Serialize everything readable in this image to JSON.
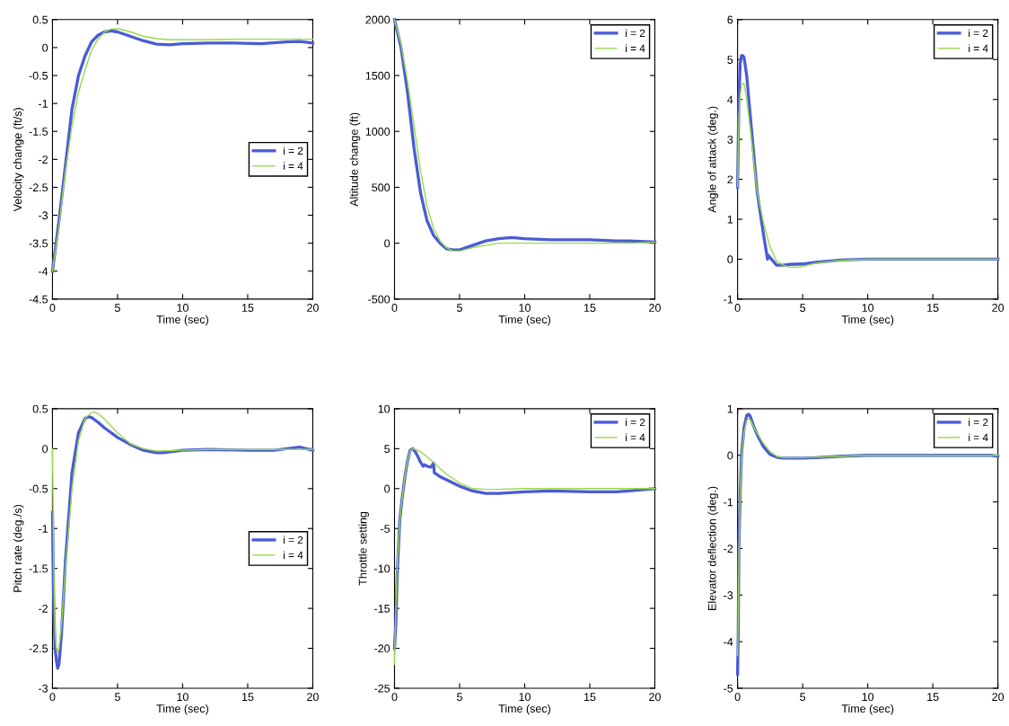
{
  "chart_data": [
    {
      "type": "line",
      "xlabel": "Time (sec)",
      "ylabel": "Velocity change (ft/s)",
      "xlim": [
        0,
        20
      ],
      "xticks": [
        0,
        5,
        10,
        15,
        20
      ],
      "ylim": [
        -4.5,
        0.5
      ],
      "yticks": [
        -4.5,
        -4,
        -3.5,
        -3,
        -2.5,
        -2,
        -1.5,
        -1,
        -0.5,
        0,
        0.5
      ],
      "legend": "right",
      "grid": false,
      "series": [
        {
          "name": "i = 2",
          "color": "#4a5bd6",
          "x": [
            0,
            0.5,
            1,
            1.5,
            2,
            2.5,
            3,
            3.5,
            4,
            4.5,
            5,
            6,
            7,
            8,
            9,
            10,
            12,
            14,
            16,
            18,
            19,
            20
          ],
          "values": [
            -4,
            -3.1,
            -2.1,
            -1.1,
            -0.5,
            -0.15,
            0.1,
            0.22,
            0.28,
            0.3,
            0.28,
            0.2,
            0.12,
            0.06,
            0.05,
            0.07,
            0.08,
            0.08,
            0.07,
            0.1,
            0.11,
            0.08
          ]
        },
        {
          "name": "i = 4",
          "color": "#99d94a",
          "x": [
            0,
            0.5,
            1,
            1.5,
            2,
            2.5,
            3,
            3.5,
            4,
            4.5,
            5,
            6,
            7,
            8,
            9,
            10,
            12,
            14,
            16,
            18,
            19,
            20
          ],
          "values": [
            -4,
            -3.2,
            -2.2,
            -1.4,
            -0.8,
            -0.4,
            -0.05,
            0.15,
            0.28,
            0.33,
            0.34,
            0.28,
            0.2,
            0.16,
            0.14,
            0.14,
            0.14,
            0.15,
            0.15,
            0.15,
            0.15,
            0.15
          ]
        }
      ]
    },
    {
      "type": "line",
      "xlabel": "Time (sec)",
      "ylabel": "Altitude change (ft)",
      "xlim": [
        0,
        20
      ],
      "xticks": [
        0,
        5,
        10,
        15,
        20
      ],
      "ylim": [
        -500,
        2000
      ],
      "yticks": [
        -500,
        0,
        500,
        1000,
        1500,
        2000
      ],
      "legend": "top right",
      "grid": false,
      "series": [
        {
          "name": "i = 2",
          "color": "#4a5bd6",
          "x": [
            0,
            0.5,
            1,
            1.5,
            2,
            2.5,
            3,
            3.5,
            4,
            4.5,
            5,
            6,
            7,
            8,
            9,
            10,
            12,
            15,
            17,
            18,
            20
          ],
          "values": [
            2000,
            1750,
            1350,
            850,
            450,
            200,
            70,
            0,
            -50,
            -60,
            -60,
            -20,
            20,
            40,
            50,
            40,
            30,
            30,
            20,
            20,
            10
          ]
        },
        {
          "name": "i = 4",
          "color": "#99d94a",
          "x": [
            0,
            0.5,
            1,
            1.5,
            2,
            2.5,
            3,
            3.5,
            4,
            4.5,
            5,
            6,
            7,
            8,
            9,
            10,
            12,
            15,
            17,
            18,
            20
          ],
          "values": [
            2000,
            1780,
            1450,
            1050,
            650,
            330,
            130,
            20,
            -40,
            -70,
            -70,
            -40,
            -20,
            0,
            0,
            0,
            0,
            0,
            0,
            0,
            10
          ]
        }
      ]
    },
    {
      "type": "line",
      "xlabel": "Time (sec)",
      "ylabel": "Angle of attack (deg.)",
      "xlim": [
        0,
        20
      ],
      "xticks": [
        0,
        5,
        10,
        15,
        20
      ],
      "ylim": [
        -1,
        6
      ],
      "yticks": [
        -1,
        0,
        1,
        2,
        3,
        4,
        5,
        6
      ],
      "legend": "top right",
      "grid": false,
      "series": [
        {
          "name": "i = 2",
          "color": "#4a5bd6",
          "x": [
            0,
            0.1,
            0.2,
            0.3,
            0.4,
            0.5,
            0.7,
            1,
            1.5,
            2,
            2.3,
            2.35,
            2.6,
            3,
            3.5,
            4,
            5,
            6,
            8,
            10,
            15,
            20
          ],
          "values": [
            1.8,
            4,
            4.9,
            5.1,
            5.1,
            5.05,
            4.6,
            3.5,
            1.7,
            0.6,
            0.0,
            0.1,
            0.0,
            -0.15,
            -0.15,
            -0.13,
            -0.12,
            -0.08,
            -0.02,
            0,
            0,
            0
          ]
        },
        {
          "name": "i = 4",
          "color": "#99d94a",
          "x": [
            0,
            0.1,
            0.2,
            0.3,
            0.4,
            0.5,
            0.7,
            1,
            1.5,
            2,
            2.5,
            3,
            3.5,
            4,
            4.5,
            5,
            6,
            8,
            10,
            15,
            20
          ],
          "values": [
            1.8,
            3.5,
            4.1,
            4.35,
            4.4,
            4.4,
            4.0,
            3.2,
            1.7,
            0.9,
            0.3,
            -0.05,
            -0.15,
            -0.2,
            -0.2,
            -0.18,
            -0.1,
            -0.03,
            0,
            0,
            0
          ]
        }
      ]
    },
    {
      "type": "line",
      "xlabel": "Time (sec)",
      "ylabel": "Pitch rate (deg./s)",
      "xlim": [
        0,
        20
      ],
      "xticks": [
        0,
        5,
        10,
        15,
        20
      ],
      "ylim": [
        -3,
        0.5
      ],
      "yticks": [
        -3,
        -2.5,
        -2,
        -1.5,
        -1,
        -0.5,
        0,
        0.5
      ],
      "legend": "right",
      "grid": false,
      "series": [
        {
          "name": "i = 2",
          "color": "#4a5bd6",
          "x": [
            0,
            0.1,
            0.2,
            0.3,
            0.4,
            0.5,
            0.7,
            1,
            1.5,
            2,
            2.5,
            2.8,
            3,
            3.5,
            4,
            5,
            6,
            7,
            8,
            8.5,
            10,
            12,
            15,
            17,
            18,
            19,
            20
          ],
          "values": [
            -0.8,
            -2.0,
            -2.5,
            -2.65,
            -2.75,
            -2.7,
            -2.3,
            -1.4,
            -0.3,
            0.2,
            0.38,
            0.4,
            0.39,
            0.33,
            0.26,
            0.14,
            0.05,
            -0.02,
            -0.05,
            -0.05,
            -0.02,
            -0.01,
            -0.02,
            -0.02,
            0.0,
            0.02,
            -0.02
          ]
        },
        {
          "name": "i = 4",
          "color": "#99d94a",
          "x": [
            0,
            0.1,
            0.2,
            0.3,
            0.4,
            0.5,
            0.7,
            1,
            1.5,
            2,
            2.5,
            3,
            3.2,
            3.5,
            4,
            5,
            6,
            7,
            8,
            10,
            12,
            15,
            20
          ],
          "values": [
            0,
            -1.5,
            -2.3,
            -2.5,
            -2.55,
            -2.5,
            -2.2,
            -1.5,
            -0.5,
            0.1,
            0.38,
            0.45,
            0.46,
            0.44,
            0.37,
            0.2,
            0.06,
            0,
            -0.03,
            -0.02,
            -0.01,
            -0.01,
            -0.01
          ]
        }
      ]
    },
    {
      "type": "line",
      "xlabel": "Time (sec)",
      "ylabel": "Throttle setting",
      "xlim": [
        0,
        20
      ],
      "xticks": [
        0,
        5,
        10,
        15,
        20
      ],
      "ylim": [
        -25,
        10
      ],
      "yticks": [
        -25,
        -20,
        -15,
        -10,
        -5,
        0,
        5,
        10
      ],
      "legend": "top right",
      "grid": false,
      "series": [
        {
          "name": "i = 2",
          "color": "#4a5bd6",
          "x": [
            0,
            0.1,
            0.2,
            0.4,
            0.6,
            0.8,
            1,
            1.2,
            1.4,
            1.6,
            1.8,
            2,
            2.2,
            2.3,
            2.5,
            2.8,
            3,
            3.05,
            3.5,
            4,
            5,
            6,
            7,
            8,
            10,
            12,
            15,
            17,
            18,
            20
          ],
          "values": [
            -20,
            -17,
            -11,
            -4,
            -1,
            1.5,
            3.5,
            4.8,
            5,
            4.6,
            4,
            3.3,
            2.8,
            3,
            2.8,
            2.7,
            3.2,
            2,
            1.5,
            1.1,
            0.3,
            -0.3,
            -0.6,
            -0.6,
            -0.4,
            -0.3,
            -0.4,
            -0.4,
            -0.3,
            0
          ]
        },
        {
          "name": "i = 4",
          "color": "#99d94a",
          "x": [
            0,
            0.1,
            0.2,
            0.4,
            0.6,
            0.8,
            1,
            1.2,
            1.4,
            1.6,
            1.8,
            2,
            2.5,
            3,
            3.5,
            4,
            5,
            6,
            7,
            8,
            10,
            15,
            20
          ],
          "values": [
            -22,
            -15,
            -10,
            -4,
            -1,
            1.5,
            3.5,
            4.7,
            5,
            4.9,
            4.8,
            4.6,
            4,
            3.3,
            2.5,
            1.8,
            0.7,
            0,
            -0.1,
            -0.1,
            0,
            0,
            0
          ]
        }
      ]
    },
    {
      "type": "line",
      "xlabel": "Time (sec)",
      "ylabel": "Elevator deflection (deg.)",
      "xlim": [
        0,
        20
      ],
      "xticks": [
        0,
        5,
        10,
        15,
        20
      ],
      "ylim": [
        -5,
        1
      ],
      "yticks": [
        -5,
        -4,
        -3,
        -2,
        -1,
        0,
        1
      ],
      "legend": "top right",
      "grid": false,
      "series": [
        {
          "name": "i = 2",
          "color": "#4a5bd6",
          "x": [
            0,
            0.05,
            0.1,
            0.2,
            0.3,
            0.5,
            0.7,
            0.8,
            0.9,
            1,
            1.2,
            1.5,
            2,
            2.5,
            3,
            3.5,
            4,
            5,
            6,
            8,
            10,
            15,
            19.5,
            20
          ],
          "values": [
            -4.7,
            -3.8,
            -2.0,
            -0.8,
            0,
            0.6,
            0.85,
            0.88,
            0.87,
            0.82,
            0.65,
            0.45,
            0.18,
            0.02,
            -0.04,
            -0.06,
            -0.06,
            -0.06,
            -0.05,
            -0.02,
            0,
            0,
            0,
            -0.02
          ]
        },
        {
          "name": "i = 4",
          "color": "#99d94a",
          "x": [
            0,
            0.05,
            0.1,
            0.2,
            0.3,
            0.5,
            0.7,
            0.8,
            0.9,
            1,
            1.2,
            1.5,
            2,
            2.5,
            3,
            3.5,
            4,
            5,
            6,
            8,
            10,
            15,
            19.5,
            20
          ],
          "values": [
            -4.3,
            -3.6,
            -2.2,
            -0.9,
            -0.1,
            0.5,
            0.75,
            0.78,
            0.78,
            0.75,
            0.63,
            0.48,
            0.25,
            0.08,
            -0.02,
            -0.05,
            -0.05,
            -0.05,
            -0.04,
            -0.02,
            0,
            0,
            0,
            0
          ]
        }
      ]
    }
  ]
}
